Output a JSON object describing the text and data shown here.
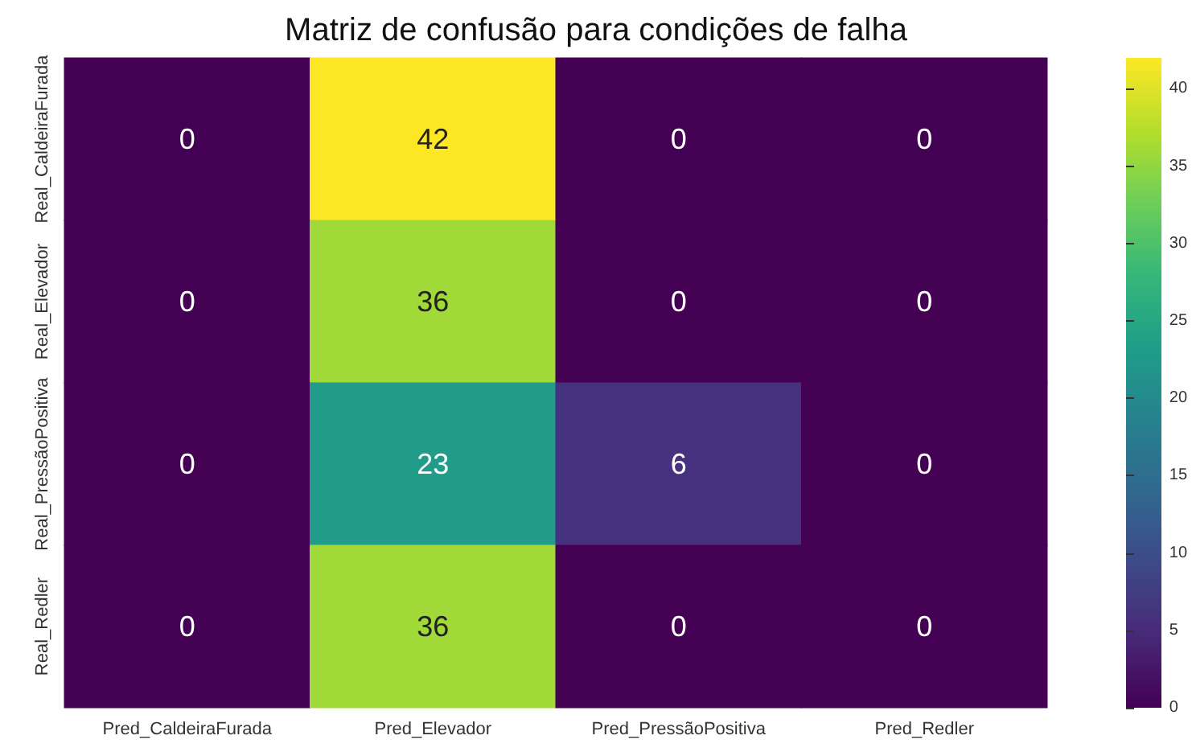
{
  "chart_data": {
    "type": "heatmap",
    "title": "Matriz de confusão para condições de falha",
    "categories": [
      "Pred_CaldeiraFurada",
      "Pred_Elevador",
      "Pred_PressãoPositiva",
      "Pred_Redler"
    ],
    "y_categories": [
      "Real_CaldeiraFurada",
      "Real_Elevador",
      "Real_PressãoPositiva",
      "Real_Redler"
    ],
    "cells": [
      [
        0,
        42,
        0,
        0
      ],
      [
        0,
        36,
        0,
        0
      ],
      [
        0,
        23,
        6,
        0
      ],
      [
        0,
        36,
        0,
        0
      ]
    ],
    "clim": [
      0,
      42
    ],
    "cticks": [
      0,
      5,
      10,
      15,
      20,
      25,
      30,
      35,
      40
    ],
    "data_labels": true
  }
}
